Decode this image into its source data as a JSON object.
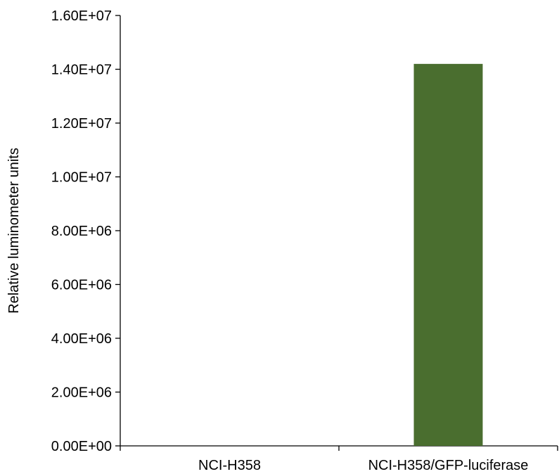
{
  "chart_data": {
    "type": "bar",
    "title": "",
    "xlabel": "",
    "ylabel": "Relative luminometer units",
    "categories": [
      "NCI-H358",
      "NCI-H358/GFP-luciferase"
    ],
    "values": [
      0,
      14200000
    ],
    "ylim": [
      0,
      16000000
    ],
    "y_ticks": [
      0,
      2000000,
      4000000,
      6000000,
      8000000,
      10000000,
      12000000,
      14000000,
      16000000
    ],
    "y_tick_labels": [
      "0.00E+00",
      "2.00E+06",
      "4.00E+06",
      "6.00E+06",
      "8.00E+06",
      "1.00E+07",
      "1.20E+07",
      "1.40E+07",
      "1.60E+07"
    ],
    "bar_color": "#4a6e2f",
    "axis_color": "#000000",
    "grid": false,
    "legend": "none"
  }
}
